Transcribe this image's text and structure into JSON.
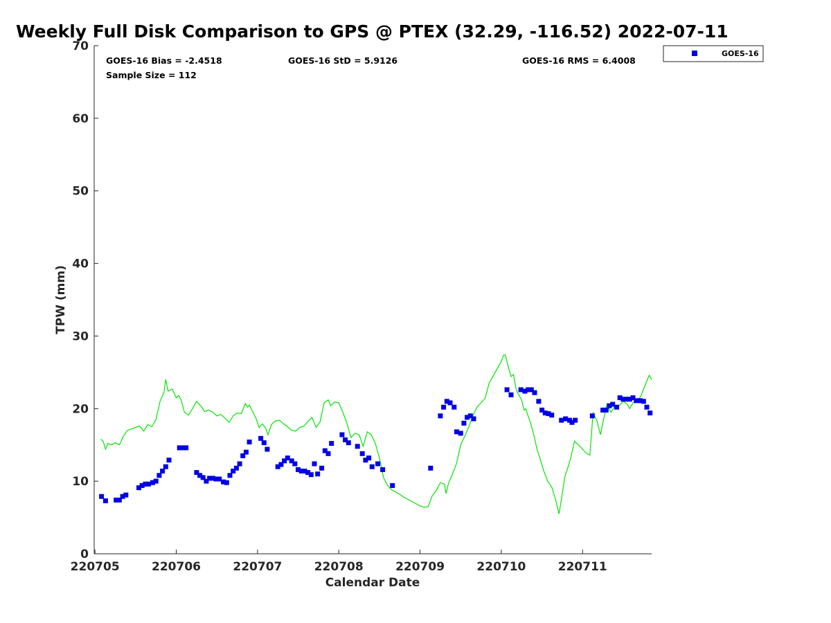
{
  "colors": {
    "goes": "#0000e6",
    "gps": "#00e600",
    "axis": "#262626",
    "text": "#000000"
  },
  "stats": {
    "bias": "GOES-16 Bias = -2.4518",
    "std": "GOES-16 StD = 5.9126",
    "rms": "GOES-16 RMS = 6.4008",
    "sample": "Sample Size = 112"
  },
  "legend": {
    "label": "GOES-16",
    "marker": "square"
  },
  "chart_data": {
    "type": "scatter",
    "title": "Weekly Full Disk Comparison to GPS @ PTEX (32.29, -116.52) 2022-07-11",
    "xlabel": "Calendar Date",
    "ylabel": "TPW (mm)",
    "xlim": [
      4.99,
      11.85
    ],
    "ylim": [
      0,
      70
    ],
    "x_ticks": [
      5,
      6,
      7,
      8,
      9,
      10,
      11
    ],
    "x_tick_labels": [
      "220705",
      "220706",
      "220707",
      "220708",
      "220709",
      "220710",
      "220711"
    ],
    "y_ticks": [
      0,
      10,
      20,
      30,
      40,
      50,
      60,
      70
    ],
    "y_tick_labels": [
      "0",
      "10",
      "20",
      "30",
      "40",
      "50",
      "60",
      "70"
    ],
    "series": [
      {
        "name": "GOES-16",
        "kind": "scatter",
        "points": [
          [
            5.08,
            7.9
          ],
          [
            5.13,
            7.3
          ],
          [
            5.26,
            7.4
          ],
          [
            5.3,
            7.4
          ],
          [
            5.34,
            7.9
          ],
          [
            5.38,
            8.1
          ],
          [
            5.54,
            9.1
          ],
          [
            5.58,
            9.4
          ],
          [
            5.62,
            9.6
          ],
          [
            5.66,
            9.6
          ],
          [
            5.71,
            9.8
          ],
          [
            5.75,
            10.0
          ],
          [
            5.79,
            10.8
          ],
          [
            5.83,
            11.4
          ],
          [
            5.87,
            12.0
          ],
          [
            5.91,
            12.9
          ],
          [
            6.04,
            14.6
          ],
          [
            6.08,
            14.6
          ],
          [
            6.12,
            14.6
          ],
          [
            6.25,
            11.2
          ],
          [
            6.29,
            10.8
          ],
          [
            6.33,
            10.5
          ],
          [
            6.37,
            10.0
          ],
          [
            6.41,
            10.4
          ],
          [
            6.45,
            10.4
          ],
          [
            6.49,
            10.3
          ],
          [
            6.53,
            10.3
          ],
          [
            6.58,
            9.9
          ],
          [
            6.62,
            9.8
          ],
          [
            6.66,
            10.8
          ],
          [
            6.7,
            11.4
          ],
          [
            6.74,
            11.8
          ],
          [
            6.78,
            12.4
          ],
          [
            6.82,
            13.5
          ],
          [
            6.86,
            14.0
          ],
          [
            6.9,
            15.4
          ],
          [
            7.04,
            15.9
          ],
          [
            7.08,
            15.3
          ],
          [
            7.12,
            14.4
          ],
          [
            7.25,
            12.0
          ],
          [
            7.29,
            12.3
          ],
          [
            7.33,
            12.8
          ],
          [
            7.37,
            13.2
          ],
          [
            7.42,
            12.8
          ],
          [
            7.46,
            12.4
          ],
          [
            7.5,
            11.6
          ],
          [
            7.54,
            11.4
          ],
          [
            7.58,
            11.4
          ],
          [
            7.62,
            11.2
          ],
          [
            7.66,
            10.9
          ],
          [
            7.7,
            12.4
          ],
          [
            7.74,
            11.0
          ],
          [
            7.79,
            11.8
          ],
          [
            7.83,
            14.2
          ],
          [
            7.87,
            13.8
          ],
          [
            7.91,
            15.2
          ],
          [
            8.04,
            16.4
          ],
          [
            8.08,
            15.7
          ],
          [
            8.12,
            15.3
          ],
          [
            8.23,
            14.8
          ],
          [
            8.29,
            13.8
          ],
          [
            8.33,
            12.9
          ],
          [
            8.37,
            13.2
          ],
          [
            8.41,
            12.0
          ],
          [
            8.48,
            12.4
          ],
          [
            8.54,
            11.6
          ],
          [
            8.66,
            9.4
          ],
          [
            9.13,
            11.8
          ],
          [
            9.25,
            19.0
          ],
          [
            9.29,
            20.2
          ],
          [
            9.33,
            21.0
          ],
          [
            9.37,
            20.8
          ],
          [
            9.42,
            20.2
          ],
          [
            9.45,
            16.8
          ],
          [
            9.5,
            16.6
          ],
          [
            9.54,
            18.0
          ],
          [
            9.58,
            18.8
          ],
          [
            9.62,
            19.0
          ],
          [
            9.66,
            18.6
          ],
          [
            10.07,
            22.6
          ],
          [
            10.12,
            21.9
          ],
          [
            10.24,
            22.6
          ],
          [
            10.29,
            22.4
          ],
          [
            10.33,
            22.6
          ],
          [
            10.37,
            22.6
          ],
          [
            10.41,
            22.2
          ],
          [
            10.46,
            21.0
          ],
          [
            10.5,
            19.8
          ],
          [
            10.54,
            19.4
          ],
          [
            10.58,
            19.3
          ],
          [
            10.62,
            19.1
          ],
          [
            10.74,
            18.4
          ],
          [
            10.79,
            18.6
          ],
          [
            10.84,
            18.4
          ],
          [
            10.87,
            18.1
          ],
          [
            10.91,
            18.4
          ],
          [
            11.12,
            19.0
          ],
          [
            11.25,
            19.8
          ],
          [
            11.29,
            19.8
          ],
          [
            11.33,
            20.4
          ],
          [
            11.37,
            20.6
          ],
          [
            11.42,
            20.2
          ],
          [
            11.46,
            21.5
          ],
          [
            11.5,
            21.3
          ],
          [
            11.54,
            21.3
          ],
          [
            11.58,
            21.3
          ],
          [
            11.62,
            21.5
          ],
          [
            11.66,
            21.1
          ],
          [
            11.71,
            21.1
          ],
          [
            11.75,
            21.0
          ],
          [
            11.79,
            20.2
          ],
          [
            11.83,
            19.4
          ]
        ]
      },
      {
        "name": "GPS",
        "kind": "line",
        "points": [
          [
            5.07,
            15.8
          ],
          [
            5.1,
            15.5
          ],
          [
            5.13,
            14.4
          ],
          [
            5.16,
            15.2
          ],
          [
            5.2,
            15.0
          ],
          [
            5.25,
            15.3
          ],
          [
            5.3,
            15.0
          ],
          [
            5.35,
            16.2
          ],
          [
            5.4,
            17.0
          ],
          [
            5.45,
            17.2
          ],
          [
            5.5,
            17.4
          ],
          [
            5.55,
            17.6
          ],
          [
            5.6,
            16.9
          ],
          [
            5.65,
            17.8
          ],
          [
            5.7,
            17.5
          ],
          [
            5.75,
            18.5
          ],
          [
            5.8,
            21.0
          ],
          [
            5.85,
            22.3
          ],
          [
            5.87,
            24.0
          ],
          [
            5.9,
            22.4
          ],
          [
            5.95,
            22.7
          ],
          [
            6.0,
            21.5
          ],
          [
            6.03,
            21.8
          ],
          [
            6.06,
            21.2
          ],
          [
            6.1,
            19.5
          ],
          [
            6.15,
            19.1
          ],
          [
            6.2,
            20.0
          ],
          [
            6.25,
            21.0
          ],
          [
            6.3,
            20.4
          ],
          [
            6.35,
            19.6
          ],
          [
            6.4,
            19.8
          ],
          [
            6.45,
            19.5
          ],
          [
            6.5,
            19.0
          ],
          [
            6.55,
            19.2
          ],
          [
            6.6,
            18.7
          ],
          [
            6.65,
            18.1
          ],
          [
            6.7,
            19.0
          ],
          [
            6.75,
            19.4
          ],
          [
            6.8,
            19.3
          ],
          [
            6.85,
            20.7
          ],
          [
            6.88,
            20.2
          ],
          [
            6.9,
            20.5
          ],
          [
            6.93,
            19.8
          ],
          [
            6.98,
            18.7
          ],
          [
            7.02,
            17.4
          ],
          [
            7.06,
            17.9
          ],
          [
            7.1,
            17.3
          ],
          [
            7.13,
            16.4
          ],
          [
            7.17,
            17.8
          ],
          [
            7.22,
            18.3
          ],
          [
            7.27,
            18.4
          ],
          [
            7.32,
            17.9
          ],
          [
            7.37,
            17.5
          ],
          [
            7.42,
            17.0
          ],
          [
            7.47,
            16.9
          ],
          [
            7.52,
            17.4
          ],
          [
            7.57,
            17.6
          ],
          [
            7.62,
            18.2
          ],
          [
            7.67,
            18.8
          ],
          [
            7.72,
            17.4
          ],
          [
            7.77,
            18.2
          ],
          [
            7.82,
            20.8
          ],
          [
            7.87,
            21.2
          ],
          [
            7.9,
            20.4
          ],
          [
            7.95,
            20.9
          ],
          [
            8.0,
            20.8
          ],
          [
            8.05,
            19.5
          ],
          [
            8.1,
            18.0
          ],
          [
            8.15,
            16.0
          ],
          [
            8.2,
            16.6
          ],
          [
            8.25,
            16.4
          ],
          [
            8.3,
            14.8
          ],
          [
            8.35,
            16.8
          ],
          [
            8.4,
            16.4
          ],
          [
            8.45,
            15.2
          ],
          [
            8.5,
            13.2
          ],
          [
            8.55,
            10.5
          ],
          [
            8.6,
            9.4
          ],
          [
            8.65,
            8.8
          ],
          [
            8.7,
            8.5
          ],
          [
            8.75,
            8.2
          ],
          [
            8.8,
            7.8
          ],
          [
            8.85,
            7.5
          ],
          [
            8.9,
            7.2
          ],
          [
            8.95,
            6.9
          ],
          [
            9.0,
            6.6
          ],
          [
            9.05,
            6.4
          ],
          [
            9.1,
            6.5
          ],
          [
            9.15,
            8.0
          ],
          [
            9.2,
            8.7
          ],
          [
            9.25,
            9.8
          ],
          [
            9.3,
            9.6
          ],
          [
            9.32,
            8.3
          ],
          [
            9.35,
            9.7
          ],
          [
            9.4,
            11.0
          ],
          [
            9.45,
            12.5
          ],
          [
            9.5,
            15.0
          ],
          [
            9.55,
            16.2
          ],
          [
            9.6,
            17.5
          ],
          [
            9.65,
            19.0
          ],
          [
            9.7,
            20.2
          ],
          [
            9.75,
            20.8
          ],
          [
            9.8,
            21.4
          ],
          [
            9.85,
            23.5
          ],
          [
            9.9,
            24.5
          ],
          [
            9.95,
            25.5
          ],
          [
            10.0,
            26.5
          ],
          [
            10.03,
            27.4
          ],
          [
            10.05,
            27.4
          ],
          [
            10.08,
            26.0
          ],
          [
            10.12,
            24.4
          ],
          [
            10.15,
            24.7
          ],
          [
            10.18,
            22.8
          ],
          [
            10.2,
            22.2
          ],
          [
            10.25,
            21.2
          ],
          [
            10.28,
            19.8
          ],
          [
            10.3,
            20.0
          ],
          [
            10.33,
            19.0
          ],
          [
            10.36,
            18.0
          ],
          [
            10.4,
            16.4
          ],
          [
            10.44,
            14.4
          ],
          [
            10.48,
            13.0
          ],
          [
            10.52,
            11.5
          ],
          [
            10.57,
            10.0
          ],
          [
            10.62,
            9.2
          ],
          [
            10.67,
            7.4
          ],
          [
            10.71,
            5.5
          ],
          [
            10.74,
            7.5
          ],
          [
            10.78,
            10.5
          ],
          [
            10.85,
            13.0
          ],
          [
            10.9,
            15.5
          ],
          [
            10.95,
            15.0
          ],
          [
            11.0,
            14.4
          ],
          [
            11.05,
            13.8
          ],
          [
            11.09,
            13.6
          ],
          [
            11.13,
            19.5
          ],
          [
            11.18,
            18.2
          ],
          [
            11.22,
            16.4
          ],
          [
            11.26,
            18.6
          ],
          [
            11.3,
            20.6
          ],
          [
            11.35,
            19.5
          ],
          [
            11.4,
            20.4
          ],
          [
            11.45,
            20.4
          ],
          [
            11.5,
            21.0
          ],
          [
            11.55,
            20.6
          ],
          [
            11.58,
            20.0
          ],
          [
            11.62,
            20.8
          ],
          [
            11.67,
            20.9
          ],
          [
            11.72,
            21.8
          ],
          [
            11.78,
            23.5
          ],
          [
            11.82,
            24.6
          ],
          [
            11.85,
            24.0
          ]
        ]
      }
    ]
  }
}
